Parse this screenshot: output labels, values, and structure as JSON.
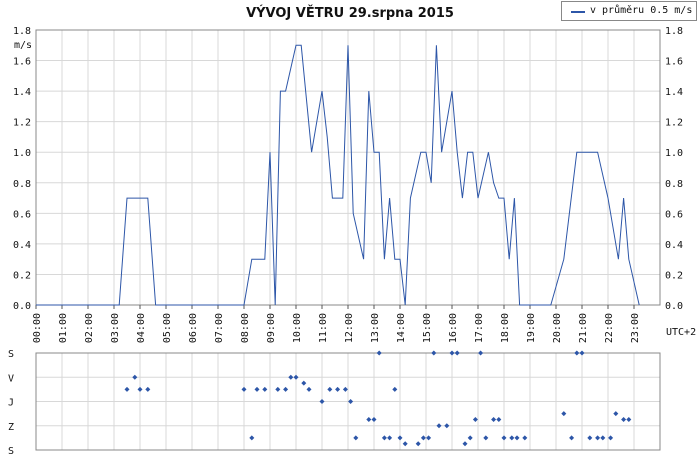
{
  "colors": {
    "series": "#2d56a8",
    "grid": "#d8d8d8",
    "axis": "#555555",
    "frame": "#888888"
  },
  "chart_data": [
    {
      "type": "line",
      "title": "VÝVOJ VĚTRU  29.srpna 2015",
      "ylabel": "m/s",
      "xunit_label": "UTC+2",
      "legend": {
        "position": "top-right",
        "entries": [
          "v průměru 0.5 m/s"
        ]
      },
      "grid": true,
      "xlim": [
        0,
        24
      ],
      "ylim": [
        0,
        1.8
      ],
      "yticks": [
        0.0,
        0.2,
        0.4,
        0.6,
        0.8,
        1.0,
        1.2,
        1.4,
        1.6,
        1.8
      ],
      "ytick_labels": [
        "0.0",
        "0.2",
        "0.4",
        "0.6",
        "0.8",
        "1.0",
        "1.2",
        "1.4",
        "1.6",
        "1.8"
      ],
      "xtick_labels": [
        "00:00",
        "01:00",
        "02:00",
        "03:00",
        "04:00",
        "05:00",
        "06:00",
        "07:00",
        "08:00",
        "09:00",
        "10:00",
        "11:00",
        "12:00",
        "13:00",
        "14:00",
        "15:00",
        "16:00",
        "17:00",
        "18:00",
        "19:00",
        "20:00",
        "21:00",
        "22:00",
        "23:00"
      ],
      "series": [
        {
          "name": "v průměru 0.5 m/s",
          "x": [
            0,
            3.2,
            3.5,
            4.3,
            4.6,
            8.0,
            8.3,
            8.8,
            9.0,
            9.2,
            9.4,
            9.6,
            10.0,
            10.2,
            10.6,
            11.0,
            11.2,
            11.4,
            11.8,
            12.0,
            12.2,
            12.6,
            12.8,
            13.0,
            13.2,
            13.4,
            13.6,
            13.8,
            14.0,
            14.2,
            14.4,
            14.8,
            15.0,
            15.2,
            15.4,
            15.6,
            16.0,
            16.2,
            16.4,
            16.6,
            16.8,
            17.0,
            17.4,
            17.6,
            17.8,
            18.0,
            18.2,
            18.4,
            18.6,
            19.0,
            19.2,
            19.8,
            20.3,
            20.8,
            21.6,
            22.0,
            22.4,
            22.6,
            22.8,
            23.2
          ],
          "y": [
            0,
            0,
            0.7,
            0.7,
            0,
            0,
            0.3,
            0.3,
            1.0,
            0,
            1.4,
            1.4,
            1.7,
            1.7,
            1.0,
            1.4,
            1.1,
            0.7,
            0.7,
            1.7,
            0.6,
            0.3,
            1.4,
            1.0,
            1.0,
            0.3,
            0.7,
            0.3,
            0.3,
            0,
            0.7,
            1.0,
            1.0,
            0.8,
            1.7,
            1.0,
            1.4,
            1.0,
            0.7,
            1.0,
            1.0,
            0.7,
            1.0,
            0.8,
            0.7,
            0.7,
            0.3,
            0.7,
            0,
            0,
            0,
            0,
            0.3,
            1.0,
            1.0,
            0.7,
            0.3,
            0.7,
            0.3,
            0
          ]
        }
      ]
    },
    {
      "type": "scatter",
      "ytick_labels": [
        "S",
        "V",
        "J",
        "Z",
        "S"
      ],
      "ylim": [
        0,
        360
      ],
      "xlim": [
        0,
        24
      ],
      "grid": true,
      "series": [
        {
          "name": "",
          "x": [
            3.5,
            3.8,
            4.0,
            4.3,
            8.0,
            8.3,
            8.5,
            8.8,
            9.3,
            9.6,
            9.8,
            10.0,
            10.3,
            10.5,
            11.0,
            11.3,
            11.6,
            11.9,
            12.1,
            12.3,
            12.8,
            13.0,
            13.2,
            13.4,
            13.6,
            13.8,
            14.0,
            14.2,
            14.7,
            14.9,
            15.1,
            15.3,
            15.5,
            15.8,
            16.0,
            16.2,
            16.5,
            16.7,
            16.9,
            17.1,
            17.3,
            17.6,
            17.8,
            18.0,
            18.3,
            18.5,
            18.8,
            20.3,
            20.6,
            20.8,
            21.0,
            21.3,
            21.6,
            21.8,
            22.1,
            22.3,
            22.6,
            22.8
          ],
          "y": [
            135,
            90,
            135,
            135,
            135,
            315,
            135,
            135,
            135,
            135,
            90,
            90,
            112,
            135,
            180,
            135,
            135,
            135,
            180,
            315,
            247,
            247,
            0,
            315,
            315,
            135,
            315,
            337,
            337,
            315,
            315,
            0,
            270,
            270,
            0,
            0,
            337,
            315,
            247,
            0,
            315,
            247,
            247,
            315,
            315,
            315,
            315,
            225,
            315,
            0,
            0,
            315,
            315,
            315,
            315,
            225,
            247,
            247
          ]
        }
      ]
    }
  ]
}
